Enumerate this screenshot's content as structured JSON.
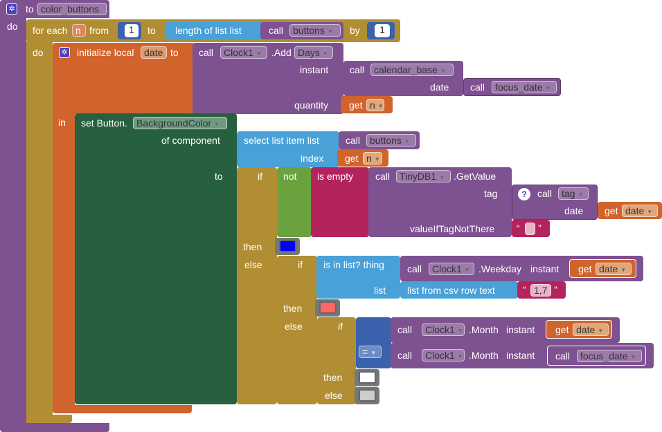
{
  "procedure": {
    "to_label": "to",
    "name": "color_buttons",
    "do_label": "do"
  },
  "foreach": {
    "label": "for each",
    "var": "n",
    "from_label": "from",
    "from_value": "1",
    "to_label": "to",
    "length_label": "length of list  list",
    "call_label": "call",
    "buttons": "buttons",
    "by_label": "by",
    "by_value": "1",
    "do_label": "do"
  },
  "init_local": {
    "label": "initialize local",
    "var": "date",
    "to_label": "to",
    "call_label": "call",
    "component": "Clock1",
    "method": ".Add",
    "unit": "Days",
    "instant_label": "instant",
    "calendar_call": "call",
    "calendar_base": "calendar_base",
    "date_label": "date",
    "focus_call": "call",
    "focus_date": "focus_date",
    "quantity_label": "quantity",
    "get_label": "get",
    "get_var": "n",
    "in_label": "in"
  },
  "set_button": {
    "label": "set Button.",
    "property": "BackgroundColor",
    "of_component_label": "of component",
    "select_label": "select list item  list",
    "call_label": "call",
    "buttons": "buttons",
    "index_label": "index",
    "get_label": "get",
    "get_var": "n",
    "to_label": "to"
  },
  "if1": {
    "if_label": "if",
    "not_label": "not",
    "is_empty_label": "is empty",
    "call_label": "call",
    "component": "TinyDB1",
    "method": ".GetValue",
    "tag_label": "tag",
    "q": "?",
    "tag_call": "call",
    "tag_proc": "tag",
    "date_label": "date",
    "get_label": "get",
    "get_var": "date",
    "value_label": "valueIfTagNotThere",
    "quote_open": "“",
    "quote_close": "”",
    "then_label": "then",
    "else_label": "else"
  },
  "if2": {
    "if_label": "if",
    "is_in_list_label": "is in list? thing",
    "call_label": "call",
    "component": "Clock1",
    "method": ".Weekday",
    "instant_label": "instant",
    "get_label": "get",
    "get_var": "date",
    "list_label": "list",
    "csv_label": "list from csv row  text",
    "quote_open": "“",
    "csv_text": "1,7",
    "quote_close": "”",
    "then_label": "then",
    "else_label": "else"
  },
  "if3": {
    "if_label": "if",
    "call_label": "call",
    "component": "Clock1",
    "method": ".Month",
    "instant_label": "instant",
    "get_label": "get",
    "get_var": "date",
    "op": "=",
    "call2_label": "call",
    "component2": "Clock1",
    "method2": ".Month",
    "instant2_label": "instant",
    "focus_call": "call",
    "focus_date": "focus_date",
    "then_label": "then",
    "else_label": "else"
  },
  "colors": {
    "blue": "#0000ff",
    "red": "#ff6666",
    "white": "#ffffff",
    "light_gray": "#cccccc"
  }
}
